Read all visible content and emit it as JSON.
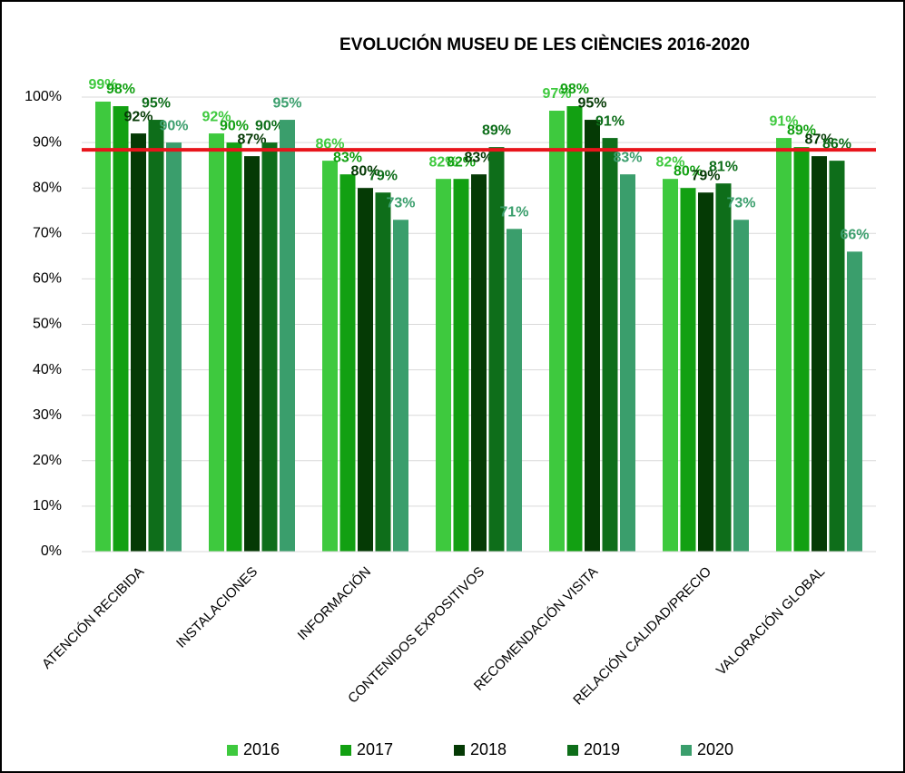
{
  "chart_data": {
    "type": "bar",
    "title": "EVOLUCIÓN MUSEU DE LES CIÈNCIES 2016-2020",
    "categories": [
      "ATENCIÓN RECIBIDA",
      "INSTALACIONES",
      "INFORMACIÓN",
      "CONTENIDOS EXPOSITIVOS",
      "RECOMENDACIÓN VISITA",
      "RELACIÓN CALIDAD/PRECIO",
      "VALORACIÓN GLOBAL"
    ],
    "series": [
      {
        "name": "2016",
        "color": "#3ec93e",
        "values": [
          99,
          92,
          86,
          82,
          97,
          82,
          91
        ],
        "value_labels": [
          "99%",
          "92%",
          "86%",
          "82%",
          "97%",
          "82%",
          "91%"
        ]
      },
      {
        "name": "2017",
        "color": "#12a012",
        "values": [
          98,
          90,
          83,
          82,
          98,
          80,
          89
        ],
        "value_labels": [
          "98%",
          "90%",
          "83%",
          "82%",
          "98%",
          "80%",
          "89%"
        ]
      },
      {
        "name": "2018",
        "color": "#053a05",
        "values": [
          92,
          87,
          80,
          83,
          95,
          79,
          87
        ],
        "value_labels": [
          "92%",
          "87%",
          "80%",
          "83%",
          "95%",
          "79%",
          "87%"
        ]
      },
      {
        "name": "2019",
        "color": "#0e6e1a",
        "values": [
          95,
          90,
          79,
          89,
          91,
          81,
          86
        ],
        "value_labels": [
          "95%",
          "90%",
          "79%",
          "89%",
          "91%",
          "81%",
          "86%"
        ]
      },
      {
        "name": "2020",
        "color": "#3a9e6c",
        "values": [
          90,
          95,
          73,
          71,
          83,
          73,
          66
        ],
        "value_labels": [
          "90%",
          "95%",
          "73%",
          "71%",
          "83%",
          "73%",
          "66%"
        ]
      }
    ],
    "reference_line": {
      "value": 88.4,
      "color": "#e8141b"
    },
    "ylim": [
      0,
      100
    ],
    "yticks": [
      {
        "value": 0,
        "label": "0%"
      },
      {
        "value": 10,
        "label": "10%"
      },
      {
        "value": 20,
        "label": "20%"
      },
      {
        "value": 30,
        "label": "30%"
      },
      {
        "value": 40,
        "label": "40%"
      },
      {
        "value": 50,
        "label": "50%"
      },
      {
        "value": 60,
        "label": "60%"
      },
      {
        "value": 70,
        "label": "70%"
      },
      {
        "value": 80,
        "label": "80%"
      },
      {
        "value": 90,
        "label": "90%"
      },
      {
        "value": 100,
        "label": "100%"
      }
    ],
    "grid": true,
    "legend": "bottom"
  }
}
